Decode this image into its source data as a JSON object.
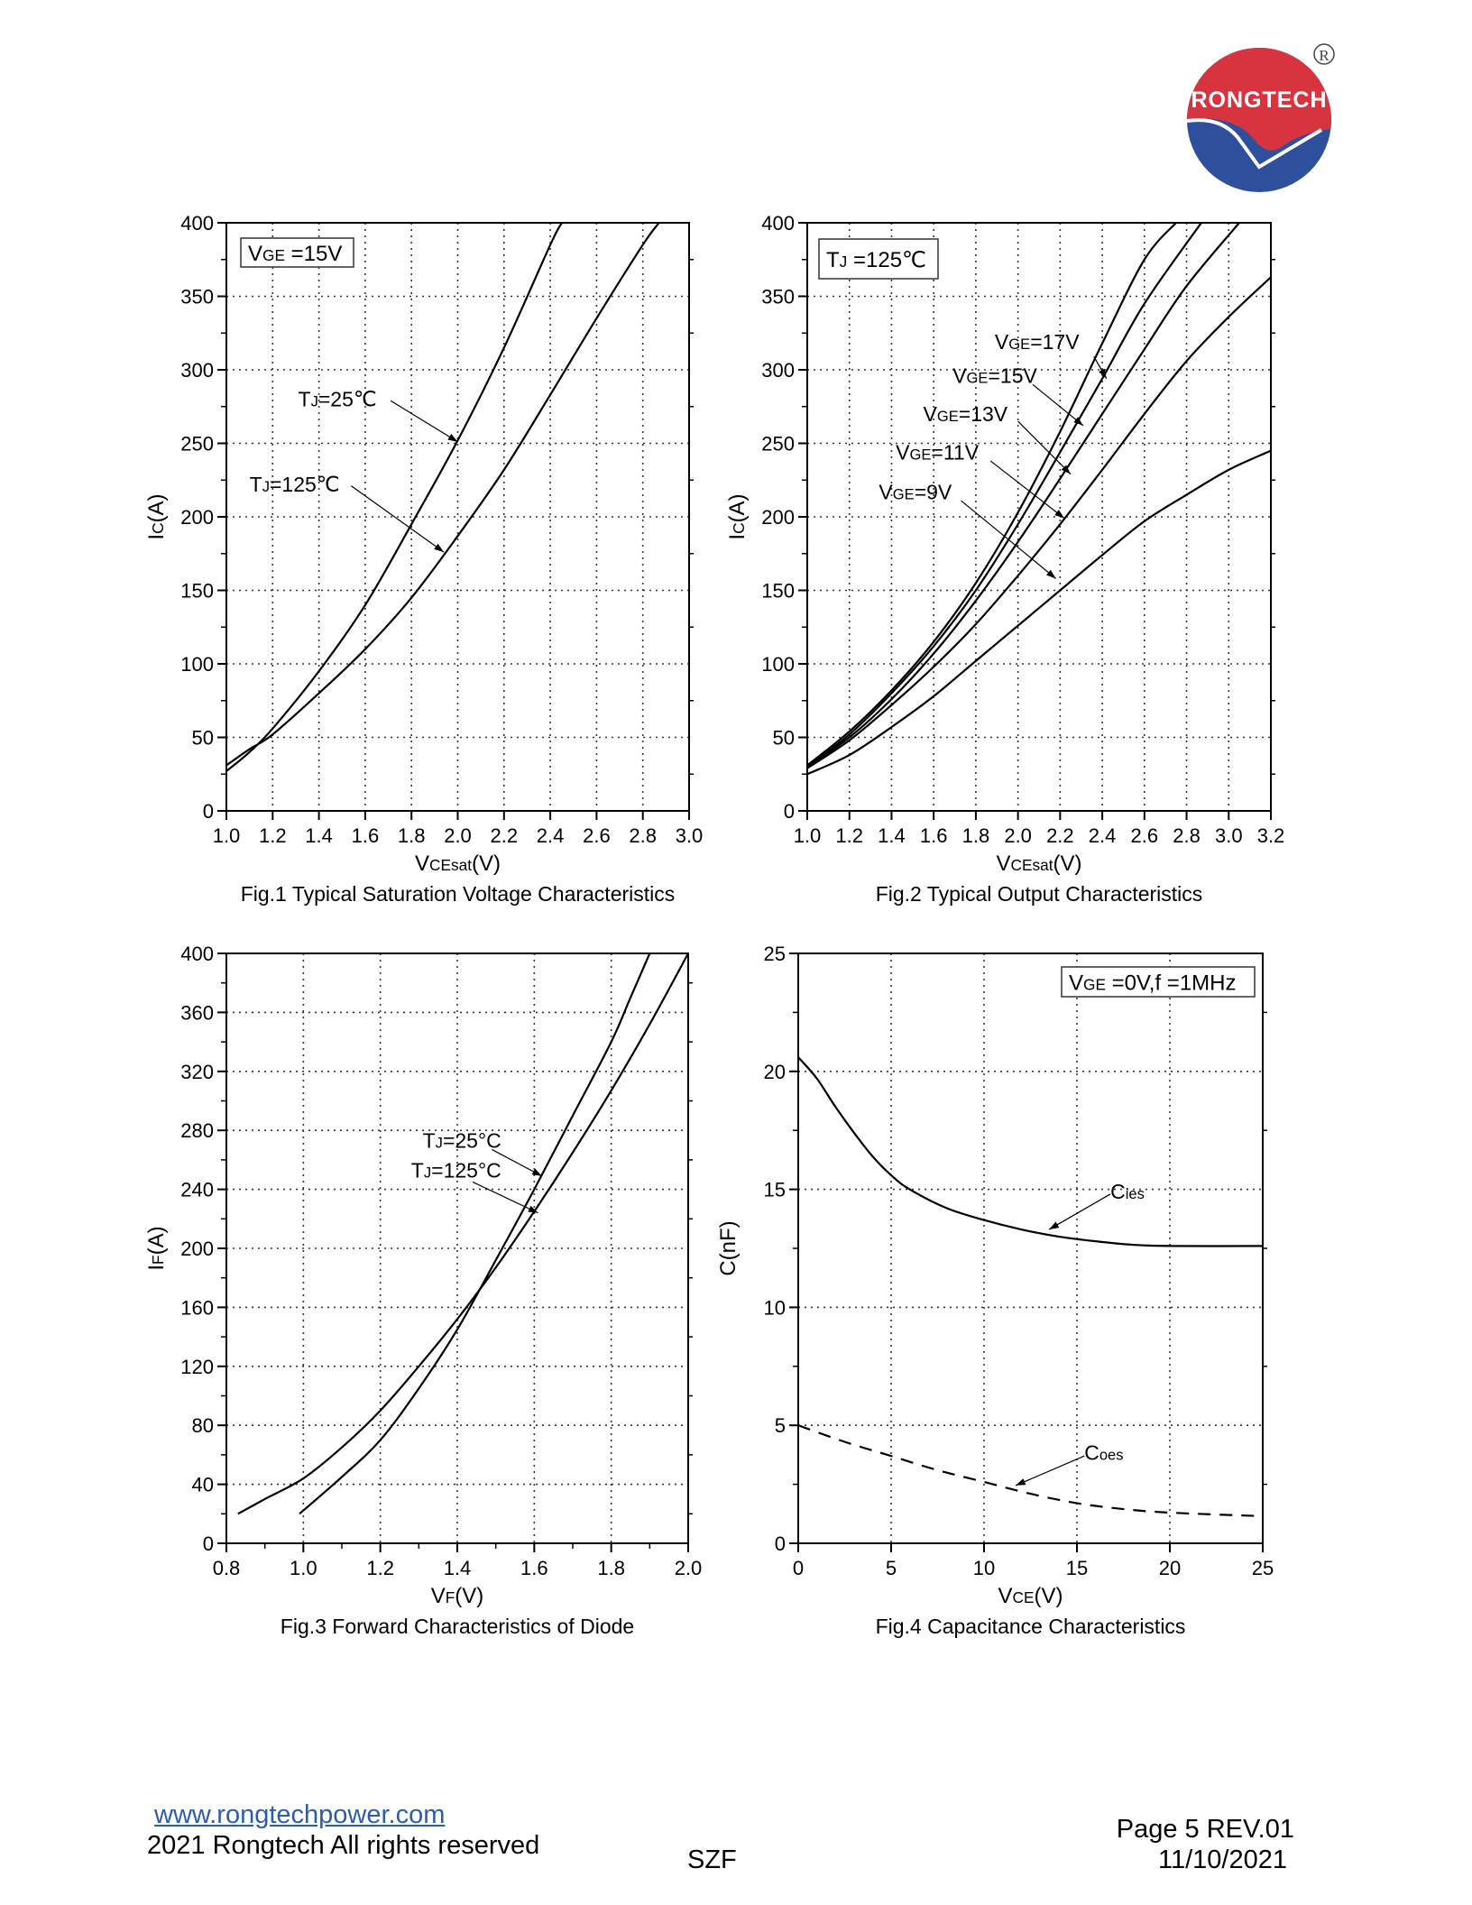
{
  "header": {
    "logo_text": "RONGTECH",
    "registered_mark": "R",
    "colors": {
      "red": "#d8343f",
      "blue": "#2e4f9c"
    }
  },
  "footer": {
    "website": "www.rongtechpower.com",
    "copyright": "2021 Rongtech All rights reserved",
    "center": "SZF",
    "page": "Page 5  REV.01",
    "date": "11/10/2021"
  },
  "chart_data": [
    {
      "type": "line",
      "title": "Fig.1 Typical Saturation Voltage Characteristics",
      "xlabel": {
        "main": "V",
        "sub": "CEsat",
        "rest": "(V)"
      },
      "ylabel": {
        "main": "I",
        "sub": "C",
        "rest": "(A)"
      },
      "xlim": [
        1.0,
        3.0
      ],
      "ylim": [
        0,
        400
      ],
      "xticks": [
        "1.0",
        "1.2",
        "1.4",
        "1.6",
        "1.8",
        "2.0",
        "2.2",
        "2.4",
        "2.6",
        "2.8",
        "3.0"
      ],
      "yticks": [
        "0",
        "50",
        "100",
        "150",
        "200",
        "250",
        "300",
        "350",
        "400"
      ],
      "grid": true,
      "legend_box": {
        "main": "V",
        "sub": "GE",
        "rest": " =15V"
      },
      "series": [
        {
          "name": "TJ=25℃",
          "label": {
            "main": "T",
            "sub": "J",
            "rest": "=25℃"
          },
          "x": [
            1.0,
            1.1,
            1.2,
            1.4,
            1.6,
            1.8,
            2.0,
            2.2,
            2.4,
            2.45
          ],
          "y": [
            27,
            40,
            56,
            95,
            140,
            195,
            252,
            315,
            385,
            400
          ]
        },
        {
          "name": "TJ=125℃",
          "label": {
            "main": "T",
            "sub": "J",
            "rest": "=125℃"
          },
          "x": [
            1.0,
            1.1,
            1.2,
            1.4,
            1.6,
            1.8,
            2.0,
            2.2,
            2.4,
            2.6,
            2.8,
            2.87
          ],
          "y": [
            31,
            42,
            52,
            80,
            110,
            145,
            187,
            232,
            283,
            335,
            385,
            400
          ]
        }
      ]
    },
    {
      "type": "line",
      "title": "Fig.2 Typical Output Characteristics",
      "xlabel": {
        "main": "V",
        "sub": "CEsat",
        "rest": "(V)"
      },
      "ylabel": {
        "main": "I",
        "sub": "C",
        "rest": "(A)"
      },
      "xlim": [
        1.0,
        3.2
      ],
      "ylim": [
        0,
        400
      ],
      "xticks": [
        "1.0",
        "1.2",
        "1.4",
        "1.6",
        "1.8",
        "2.0",
        "2.2",
        "2.4",
        "2.6",
        "2.8",
        "3.0",
        "3.2"
      ],
      "yticks": [
        "0",
        "50",
        "100",
        "150",
        "200",
        "250",
        "300",
        "350",
        "400"
      ],
      "grid": true,
      "legend_box": {
        "main": "T",
        "sub": "J",
        "rest": " =125℃"
      },
      "series": [
        {
          "name": "VGE=17V",
          "label": {
            "main": "V",
            "sub": "GE",
            "rest": "=17V"
          },
          "x": [
            1.0,
            1.2,
            1.4,
            1.6,
            1.8,
            2.0,
            2.2,
            2.4,
            2.6,
            2.75
          ],
          "y": [
            31,
            54,
            82,
            115,
            155,
            203,
            258,
            318,
            375,
            400
          ]
        },
        {
          "name": "VGE=15V",
          "label": {
            "main": "V",
            "sub": "GE",
            "rest": "=15V"
          },
          "x": [
            1.0,
            1.2,
            1.4,
            1.6,
            1.8,
            2.0,
            2.2,
            2.4,
            2.6,
            2.87
          ],
          "y": [
            30,
            52,
            80,
            112,
            150,
            195,
            244,
            294,
            345,
            400
          ]
        },
        {
          "name": "VGE=13V",
          "label": {
            "main": "V",
            "sub": "GE",
            "rest": "=13V"
          },
          "x": [
            1.0,
            1.2,
            1.4,
            1.6,
            1.8,
            2.0,
            2.2,
            2.4,
            2.6,
            2.8,
            3.05
          ],
          "y": [
            30,
            50,
            76,
            107,
            143,
            183,
            226,
            270,
            314,
            357,
            400
          ]
        },
        {
          "name": "VGE=11V",
          "label": {
            "main": "V",
            "sub": "GE",
            "rest": "=11V"
          },
          "x": [
            1.0,
            1.2,
            1.4,
            1.6,
            1.8,
            2.0,
            2.2,
            2.4,
            2.6,
            2.8,
            3.0,
            3.2
          ],
          "y": [
            29,
            48,
            72,
            98,
            127,
            160,
            195,
            232,
            270,
            306,
            336,
            363
          ]
        },
        {
          "name": "VGE=9V",
          "label": {
            "main": "V",
            "sub": "GE",
            "rest": "=9V"
          },
          "x": [
            1.0,
            1.2,
            1.4,
            1.6,
            1.8,
            2.0,
            2.2,
            2.4,
            2.6,
            2.8,
            3.0,
            3.2
          ],
          "y": [
            25,
            38,
            57,
            78,
            102,
            126,
            150,
            174,
            197,
            215,
            232,
            245
          ]
        }
      ]
    },
    {
      "type": "line",
      "title": "Fig.3 Forward Characteristics of Diode",
      "xlabel": {
        "main": "V",
        "sub": "F",
        "rest": "(V)"
      },
      "ylabel": {
        "main": "I",
        "sub": "F",
        "rest": "(A)"
      },
      "xlim": [
        0.8,
        2.0
      ],
      "ylim": [
        0,
        400
      ],
      "xticks": [
        "0.8",
        "1.0",
        "1.2",
        "1.4",
        "1.6",
        "1.8",
        "2.0"
      ],
      "yticks": [
        "0",
        "40",
        "80",
        "120",
        "160",
        "200",
        "240",
        "280",
        "320",
        "360",
        "400"
      ],
      "grid": true,
      "series": [
        {
          "name": "TJ=25°C",
          "label": {
            "main": "T",
            "sub": "J",
            "rest": "=25°C"
          },
          "x": [
            0.99,
            1.1,
            1.2,
            1.3,
            1.4,
            1.5,
            1.6,
            1.7,
            1.8,
            1.85,
            1.9
          ],
          "y": [
            20,
            45,
            70,
            105,
            145,
            192,
            240,
            290,
            340,
            370,
            400
          ]
        },
        {
          "name": "TJ=125°C",
          "label": {
            "main": "T",
            "sub": "J",
            "rest": "=125°C"
          },
          "x": [
            0.83,
            0.9,
            1.0,
            1.1,
            1.2,
            1.3,
            1.4,
            1.5,
            1.6,
            1.7,
            1.8,
            1.9,
            2.0
          ],
          "y": [
            20,
            30,
            44,
            65,
            90,
            120,
            152,
            187,
            225,
            265,
            307,
            352,
            400
          ]
        }
      ]
    },
    {
      "type": "line",
      "title": "Fig.4 Capacitance Characteristics",
      "xlabel": {
        "main": "V",
        "sub": "CE",
        "rest": "(V)"
      },
      "ylabel": {
        "main": "C(nF)",
        "sub": "",
        "rest": ""
      },
      "xlim": [
        0,
        25
      ],
      "ylim": [
        0,
        25
      ],
      "xticks": [
        "0",
        "5",
        "10",
        "15",
        "20",
        "25"
      ],
      "yticks": [
        "0",
        "5",
        "10",
        "15",
        "20",
        "25"
      ],
      "grid": true,
      "legend_box": {
        "main": "V",
        "sub": "GE",
        "rest": " =0V,f =1MHz"
      },
      "series": [
        {
          "name": "Cies",
          "label": {
            "main": "C",
            "sub": "ies",
            "rest": ""
          },
          "style": "solid",
          "x": [
            0,
            1,
            2,
            3,
            4,
            5,
            6,
            8,
            10,
            12,
            14,
            16,
            18,
            20,
            25
          ],
          "y": [
            20.6,
            19.7,
            18.5,
            17.4,
            16.4,
            15.6,
            15.0,
            14.2,
            13.7,
            13.3,
            13.0,
            12.8,
            12.65,
            12.6,
            12.6
          ]
        },
        {
          "name": "Coes",
          "label": {
            "main": "C",
            "sub": "oes",
            "rest": ""
          },
          "style": "dashed",
          "x": [
            0,
            2.5,
            5,
            7.5,
            10,
            12.5,
            15,
            17.5,
            20,
            25
          ],
          "y": [
            5.0,
            4.3,
            3.7,
            3.1,
            2.6,
            2.1,
            1.7,
            1.45,
            1.3,
            1.15
          ]
        }
      ]
    }
  ]
}
